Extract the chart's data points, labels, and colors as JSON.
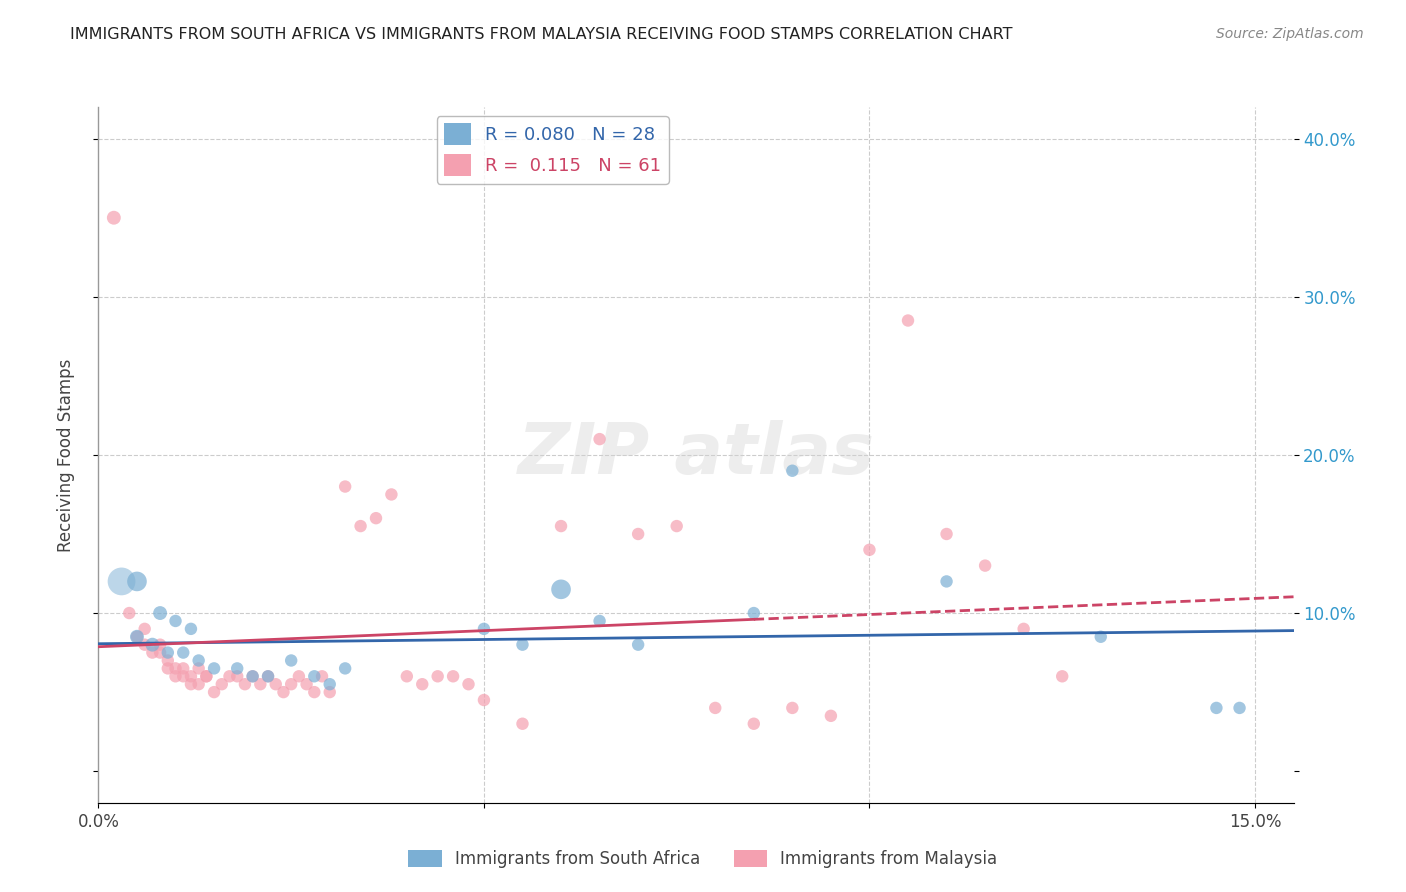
{
  "title": "IMMIGRANTS FROM SOUTH AFRICA VS IMMIGRANTS FROM MALAYSIA RECEIVING FOOD STAMPS CORRELATION CHART",
  "source": "Source: ZipAtlas.com",
  "ylabel": "Receiving Food Stamps",
  "xlim": [
    0.0,
    0.155
  ],
  "ylim": [
    -0.02,
    0.42
  ],
  "legend_R1": "R = 0.080",
  "legend_N1": "N = 28",
  "legend_R2": "R =  0.115",
  "legend_N2": "N = 61",
  "color_blue": "#7bafd4",
  "color_pink": "#f4a0b0",
  "line_color_blue": "#3366aa",
  "line_color_pink": "#cc4466",
  "label1": "Immigrants from South Africa",
  "label2": "Immigrants from Malaysia",
  "south_africa_x": [
    0.005,
    0.008,
    0.01,
    0.012,
    0.005,
    0.007,
    0.009,
    0.011,
    0.013,
    0.015,
    0.018,
    0.02,
    0.022,
    0.025,
    0.028,
    0.03,
    0.032,
    0.05,
    0.055,
    0.06,
    0.065,
    0.07,
    0.085,
    0.09,
    0.11,
    0.13,
    0.145,
    0.148
  ],
  "south_africa_y": [
    0.12,
    0.1,
    0.095,
    0.09,
    0.085,
    0.08,
    0.075,
    0.075,
    0.07,
    0.065,
    0.065,
    0.06,
    0.06,
    0.07,
    0.06,
    0.055,
    0.065,
    0.09,
    0.08,
    0.115,
    0.095,
    0.08,
    0.1,
    0.19,
    0.12,
    0.085,
    0.04,
    0.04
  ],
  "south_africa_size": [
    200,
    100,
    80,
    80,
    100,
    100,
    80,
    80,
    80,
    80,
    80,
    80,
    80,
    80,
    80,
    80,
    80,
    80,
    80,
    200,
    80,
    80,
    80,
    80,
    80,
    80,
    80,
    80
  ],
  "malaysia_x": [
    0.002,
    0.004,
    0.005,
    0.006,
    0.006,
    0.007,
    0.008,
    0.008,
    0.009,
    0.009,
    0.01,
    0.01,
    0.011,
    0.011,
    0.012,
    0.012,
    0.013,
    0.013,
    0.014,
    0.014,
    0.015,
    0.016,
    0.017,
    0.018,
    0.019,
    0.02,
    0.021,
    0.022,
    0.023,
    0.024,
    0.025,
    0.026,
    0.027,
    0.028,
    0.029,
    0.03,
    0.032,
    0.034,
    0.036,
    0.038,
    0.04,
    0.042,
    0.044,
    0.046,
    0.048,
    0.05,
    0.055,
    0.06,
    0.065,
    0.07,
    0.075,
    0.08,
    0.085,
    0.09,
    0.095,
    0.1,
    0.105,
    0.11,
    0.115,
    0.12,
    0.125
  ],
  "malaysia_y": [
    0.35,
    0.1,
    0.085,
    0.08,
    0.09,
    0.075,
    0.075,
    0.08,
    0.07,
    0.065,
    0.065,
    0.06,
    0.06,
    0.065,
    0.06,
    0.055,
    0.055,
    0.065,
    0.06,
    0.06,
    0.05,
    0.055,
    0.06,
    0.06,
    0.055,
    0.06,
    0.055,
    0.06,
    0.055,
    0.05,
    0.055,
    0.06,
    0.055,
    0.05,
    0.06,
    0.05,
    0.18,
    0.155,
    0.16,
    0.175,
    0.06,
    0.055,
    0.06,
    0.06,
    0.055,
    0.045,
    0.03,
    0.155,
    0.21,
    0.15,
    0.155,
    0.04,
    0.03,
    0.04,
    0.035,
    0.14,
    0.285,
    0.15,
    0.13,
    0.09,
    0.06
  ],
  "malaysia_size": [
    100,
    80,
    80,
    80,
    80,
    80,
    80,
    80,
    80,
    80,
    80,
    80,
    80,
    80,
    80,
    80,
    80,
    80,
    80,
    80,
    80,
    80,
    80,
    80,
    80,
    80,
    80,
    80,
    80,
    80,
    80,
    80,
    80,
    80,
    80,
    80,
    80,
    80,
    80,
    80,
    80,
    80,
    80,
    80,
    80,
    80,
    80,
    80,
    80,
    80,
    80,
    80,
    80,
    80,
    80,
    80,
    80,
    80,
    80,
    80,
    80
  ]
}
